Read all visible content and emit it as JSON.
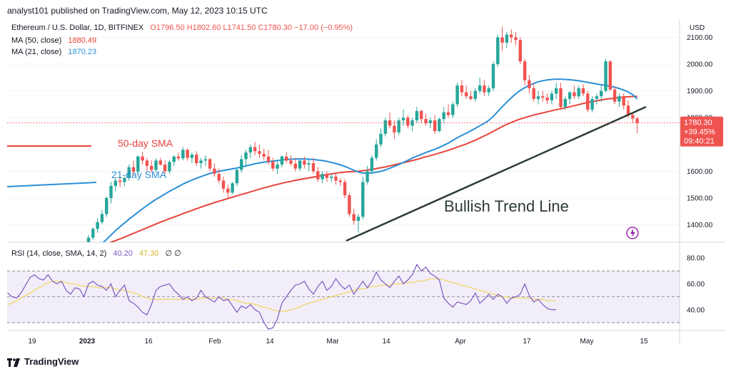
{
  "header": "analyst101 published on TradingView.com, May 12, 2023 10:15 UTC",
  "footer": "TradingView",
  "legend": {
    "symbol": "Ethereum / U.S. Dollar, 1D, BITFINEX",
    "ohlc": "O1796.50 H1802.60 L1741.50 C1780.30 −17.00 (−0.95%)",
    "ma50_label": "MA (50, close)",
    "ma50_value": "1880.49",
    "ma21_label": "MA (21, close)",
    "ma21_value": "1870.23",
    "rsi_label": "RSI (14, close, SMA, 14, 2)",
    "rsi_value": "40.20",
    "rsi_sma_value": "47.30",
    "rsi_extra": "∅ ∅"
  },
  "colors": {
    "up": "#26a69a",
    "down": "#ef5350",
    "ma50": "#e8433b",
    "ma21": "#2b8fd6",
    "rsi": "#7e57c2",
    "rsi_sma": "#f0d55c",
    "trend": "#2d3b35"
  },
  "annotations": {
    "sma50": "50-day SMA",
    "sma21": "21-day SMA",
    "trend": "Bullish Trend Line"
  },
  "chart_data": {
    "type": "candlestick",
    "currency": "USD",
    "price_ticks": [
      "2100.00",
      "2000.00",
      "1900.00",
      "1800.00",
      "1600.00",
      "1500.00",
      "1400.00"
    ],
    "ylim": [
      1335,
      2165
    ],
    "rsi_ticks": [
      "80.00",
      "60.00",
      "40.00"
    ],
    "rsi_ylim": [
      25,
      90
    ],
    "x_labels": [
      "19",
      "2023",
      "16",
      "Feb",
      "14",
      "Mar",
      "14",
      "Apr",
      "17",
      "May",
      "15"
    ],
    "last_price": "1780.30",
    "last_change": "+39.45%",
    "countdown": "09:40:21",
    "ohlc": [
      [
        1327,
        1362,
        1315,
        1352
      ],
      [
        1352,
        1390,
        1345,
        1385
      ],
      [
        1385,
        1425,
        1370,
        1410
      ],
      [
        1410,
        1455,
        1402,
        1440
      ],
      [
        1440,
        1505,
        1430,
        1500
      ],
      [
        1500,
        1560,
        1480,
        1545
      ],
      [
        1545,
        1575,
        1525,
        1565
      ],
      [
        1565,
        1585,
        1540,
        1560
      ],
      [
        1560,
        1580,
        1545,
        1575
      ],
      [
        1575,
        1625,
        1565,
        1615
      ],
      [
        1615,
        1640,
        1585,
        1598
      ],
      [
        1598,
        1660,
        1590,
        1655
      ],
      [
        1655,
        1672,
        1625,
        1640
      ],
      [
        1640,
        1650,
        1600,
        1620
      ],
      [
        1620,
        1640,
        1595,
        1605
      ],
      [
        1605,
        1648,
        1595,
        1640
      ],
      [
        1640,
        1650,
        1620,
        1625
      ],
      [
        1625,
        1640,
        1590,
        1600
      ],
      [
        1600,
        1642,
        1590,
        1635
      ],
      [
        1635,
        1660,
        1620,
        1655
      ],
      [
        1655,
        1670,
        1640,
        1648
      ],
      [
        1648,
        1690,
        1640,
        1680
      ],
      [
        1680,
        1685,
        1640,
        1650
      ],
      [
        1650,
        1670,
        1630,
        1662
      ],
      [
        1662,
        1675,
        1620,
        1630
      ],
      [
        1630,
        1650,
        1610,
        1640
      ],
      [
        1640,
        1660,
        1620,
        1645
      ],
      [
        1645,
        1650,
        1600,
        1610
      ],
      [
        1610,
        1630,
        1580,
        1590
      ],
      [
        1590,
        1610,
        1555,
        1565
      ],
      [
        1565,
        1580,
        1520,
        1535
      ],
      [
        1535,
        1550,
        1500,
        1520
      ],
      [
        1520,
        1560,
        1515,
        1555
      ],
      [
        1555,
        1615,
        1545,
        1605
      ],
      [
        1605,
        1660,
        1595,
        1645
      ],
      [
        1645,
        1680,
        1620,
        1670
      ],
      [
        1670,
        1700,
        1650,
        1690
      ],
      [
        1690,
        1710,
        1660,
        1675
      ],
      [
        1675,
        1700,
        1650,
        1665
      ],
      [
        1665,
        1685,
        1640,
        1655
      ],
      [
        1655,
        1680,
        1625,
        1635
      ],
      [
        1635,
        1650,
        1600,
        1610
      ],
      [
        1610,
        1640,
        1590,
        1625
      ],
      [
        1625,
        1660,
        1615,
        1655
      ],
      [
        1655,
        1670,
        1630,
        1640
      ],
      [
        1640,
        1660,
        1620,
        1628
      ],
      [
        1628,
        1650,
        1600,
        1610
      ],
      [
        1610,
        1645,
        1600,
        1640
      ],
      [
        1640,
        1655,
        1610,
        1625
      ],
      [
        1625,
        1645,
        1600,
        1630
      ],
      [
        1630,
        1650,
        1590,
        1600
      ],
      [
        1600,
        1615,
        1560,
        1570
      ],
      [
        1570,
        1600,
        1555,
        1590
      ],
      [
        1590,
        1600,
        1560,
        1575
      ],
      [
        1575,
        1590,
        1560,
        1580
      ],
      [
        1580,
        1595,
        1550,
        1565
      ],
      [
        1565,
        1575,
        1545,
        1560
      ],
      [
        1560,
        1570,
        1500,
        1510
      ],
      [
        1510,
        1520,
        1430,
        1440
      ],
      [
        1440,
        1460,
        1400,
        1415
      ],
      [
        1415,
        1440,
        1370,
        1430
      ],
      [
        1430,
        1580,
        1420,
        1560
      ],
      [
        1560,
        1620,
        1550,
        1600
      ],
      [
        1600,
        1660,
        1590,
        1650
      ],
      [
        1650,
        1720,
        1640,
        1700
      ],
      [
        1700,
        1760,
        1690,
        1740
      ],
      [
        1740,
        1800,
        1730,
        1790
      ],
      [
        1790,
        1820,
        1760,
        1770
      ],
      [
        1770,
        1790,
        1720,
        1745
      ],
      [
        1745,
        1800,
        1735,
        1790
      ],
      [
        1790,
        1830,
        1770,
        1800
      ],
      [
        1800,
        1810,
        1760,
        1770
      ],
      [
        1770,
        1800,
        1750,
        1790
      ],
      [
        1790,
        1840,
        1780,
        1825
      ],
      [
        1825,
        1830,
        1780,
        1795
      ],
      [
        1795,
        1815,
        1770,
        1780
      ],
      [
        1780,
        1800,
        1760,
        1790
      ],
      [
        1790,
        1810,
        1740,
        1750
      ],
      [
        1750,
        1800,
        1745,
        1795
      ],
      [
        1795,
        1840,
        1780,
        1820
      ],
      [
        1820,
        1850,
        1800,
        1810
      ],
      [
        1810,
        1860,
        1800,
        1850
      ],
      [
        1850,
        1930,
        1840,
        1920
      ],
      [
        1920,
        1940,
        1880,
        1895
      ],
      [
        1895,
        1920,
        1870,
        1880
      ],
      [
        1880,
        1900,
        1865,
        1870
      ],
      [
        1870,
        1910,
        1860,
        1900
      ],
      [
        1900,
        1950,
        1890,
        1920
      ],
      [
        1920,
        1940,
        1880,
        1895
      ],
      [
        1895,
        1920,
        1880,
        1910
      ],
      [
        1910,
        2010,
        1900,
        2000
      ],
      [
        2000,
        2110,
        1990,
        2100
      ],
      [
        2100,
        2140,
        2050,
        2080
      ],
      [
        2080,
        2120,
        2060,
        2110
      ],
      [
        2110,
        2130,
        2080,
        2100
      ],
      [
        2100,
        2120,
        2070,
        2090
      ],
      [
        2090,
        2100,
        2000,
        2010
      ],
      [
        2010,
        2020,
        1920,
        1940
      ],
      [
        1940,
        1960,
        1890,
        1910
      ],
      [
        1910,
        1930,
        1860,
        1870
      ],
      [
        1870,
        1900,
        1850,
        1880
      ],
      [
        1880,
        1900,
        1860,
        1875
      ],
      [
        1875,
        1890,
        1850,
        1865
      ],
      [
        1865,
        1900,
        1850,
        1890
      ],
      [
        1890,
        1930,
        1870,
        1910
      ],
      [
        1910,
        1930,
        1830,
        1840
      ],
      [
        1840,
        1880,
        1830,
        1870
      ],
      [
        1870,
        1900,
        1850,
        1895
      ],
      [
        1895,
        1920,
        1870,
        1880
      ],
      [
        1880,
        1920,
        1870,
        1910
      ],
      [
        1910,
        1925,
        1880,
        1890
      ],
      [
        1890,
        1900,
        1820,
        1830
      ],
      [
        1830,
        1880,
        1820,
        1870
      ],
      [
        1870,
        1890,
        1850,
        1880
      ],
      [
        1880,
        1920,
        1860,
        1900
      ],
      [
        1900,
        2020,
        1895,
        2010
      ],
      [
        2010,
        2015,
        1900,
        1905
      ],
      [
        1905,
        1915,
        1850,
        1860
      ],
      [
        1860,
        1890,
        1840,
        1880
      ],
      [
        1880,
        1890,
        1830,
        1845
      ],
      [
        1845,
        1865,
        1800,
        1810
      ],
      [
        1810,
        1820,
        1780,
        1797
      ],
      [
        1797,
        1803,
        1742,
        1780
      ]
    ],
    "ma21": [
      1286,
      1300,
      1315,
      1330,
      1345,
      1362,
      1378,
      1393,
      1407,
      1421,
      1434,
      1447,
      1460,
      1472,
      1484,
      1495,
      1505,
      1515,
      1525,
      1534,
      1543,
      1552,
      1560,
      1567,
      1574,
      1580,
      1586,
      1592,
      1596,
      1600,
      1603,
      1606,
      1609,
      1612,
      1616,
      1620,
      1624,
      1628,
      1631,
      1634,
      1636,
      1638,
      1640,
      1642,
      1644,
      1645,
      1646,
      1646,
      1646,
      1645,
      1644,
      1642,
      1640,
      1637,
      1633,
      1629,
      1624,
      1618,
      1611,
      1604,
      1597,
      1593,
      1593,
      1594,
      1596,
      1600,
      1605,
      1611,
      1618,
      1625,
      1633,
      1641,
      1649,
      1656,
      1663,
      1670,
      1676,
      1682,
      1689,
      1697,
      1705,
      1715,
      1725,
      1734,
      1742,
      1751,
      1760,
      1770,
      1779,
      1790,
      1805,
      1823,
      1841,
      1858,
      1874,
      1889,
      1902,
      1912,
      1921,
      1928,
      1934,
      1938,
      1941,
      1943,
      1944,
      1944,
      1943,
      1942,
      1940,
      1938,
      1935,
      1932,
      1929,
      1926,
      1923,
      1921,
      1918,
      1914,
      1909,
      1903,
      1896,
      1886,
      1870
    ],
    "ma50": [
      1312,
      1316,
      1320,
      1324,
      1329,
      1335,
      1341,
      1347,
      1354,
      1361,
      1368,
      1375,
      1382,
      1389,
      1396,
      1403,
      1410,
      1416,
      1423,
      1429,
      1435,
      1442,
      1448,
      1454,
      1460,
      1466,
      1472,
      1477,
      1483,
      1488,
      1493,
      1498,
      1503,
      1508,
      1513,
      1518,
      1523,
      1528,
      1533,
      1538,
      1542,
      1547,
      1551,
      1555,
      1559,
      1562,
      1566,
      1569,
      1572,
      1575,
      1578,
      1581,
      1584,
      1587,
      1590,
      1593,
      1595,
      1597,
      1598,
      1599,
      1600,
      1602,
      1604,
      1607,
      1610,
      1613,
      1616,
      1620,
      1624,
      1628,
      1632,
      1636,
      1640,
      1644,
      1649,
      1654,
      1658,
      1663,
      1668,
      1673,
      1678,
      1684,
      1690,
      1696,
      1702,
      1709,
      1716,
      1724,
      1732,
      1740,
      1749,
      1758,
      1767,
      1775,
      1782,
      1789,
      1795,
      1800,
      1805,
      1810,
      1814,
      1818,
      1822,
      1826,
      1830,
      1833,
      1837,
      1841,
      1845,
      1849,
      1853,
      1857,
      1860,
      1863,
      1866,
      1869,
      1871,
      1873,
      1875,
      1877,
      1878,
      1879,
      1880
    ],
    "rsi": [
      53,
      50,
      49,
      53,
      59,
      65,
      67,
      64,
      63,
      67,
      62,
      60,
      62,
      55,
      52,
      57,
      56,
      50,
      60,
      62,
      59,
      58,
      55,
      60,
      50,
      55,
      59,
      47,
      45,
      42,
      38,
      36,
      44,
      55,
      58,
      59,
      60,
      55,
      52,
      48,
      50,
      47,
      49,
      55,
      50,
      48,
      46,
      50,
      47,
      48,
      43,
      38,
      43,
      41,
      44,
      40,
      38,
      30,
      25,
      26,
      33,
      45,
      50,
      55,
      59,
      60,
      62,
      56,
      52,
      58,
      62,
      55,
      58,
      64,
      59,
      56,
      59,
      52,
      57,
      62,
      57,
      62,
      69,
      63,
      60,
      57,
      62,
      66,
      60,
      63,
      67,
      75,
      70,
      73,
      68,
      66,
      63,
      49,
      45,
      42,
      46,
      45,
      44,
      47,
      53,
      45,
      48,
      52,
      48,
      52,
      50,
      45,
      49,
      50,
      52,
      60,
      51,
      46,
      48,
      44,
      41,
      40,
      40
    ],
    "rsi_sma": [
      44,
      45,
      47,
      49,
      51,
      53,
      55,
      57,
      59,
      61,
      62,
      62,
      62,
      61,
      60,
      60,
      59,
      58,
      58,
      58,
      57,
      57,
      57,
      57,
      56,
      55,
      55,
      54,
      53,
      52,
      50,
      49,
      48,
      48,
      48,
      48,
      48,
      48,
      48,
      48,
      48,
      48,
      48,
      49,
      49,
      49,
      49,
      49,
      49,
      48,
      48,
      47,
      46,
      45,
      45,
      44,
      43,
      42,
      41,
      40,
      39,
      39,
      39,
      40,
      41,
      42,
      44,
      45,
      46,
      47,
      48,
      49,
      50,
      51,
      52,
      53,
      54,
      55,
      56,
      56,
      57,
      58,
      58,
      59,
      59,
      59,
      60,
      60,
      60,
      61,
      61,
      62,
      62,
      63,
      64,
      64,
      64,
      63,
      62,
      61,
      60,
      59,
      58,
      57,
      56,
      55,
      54,
      53,
      52,
      51,
      50,
      50,
      49,
      49,
      49,
      49,
      49,
      48,
      48,
      48,
      47,
      47,
      47
    ]
  }
}
